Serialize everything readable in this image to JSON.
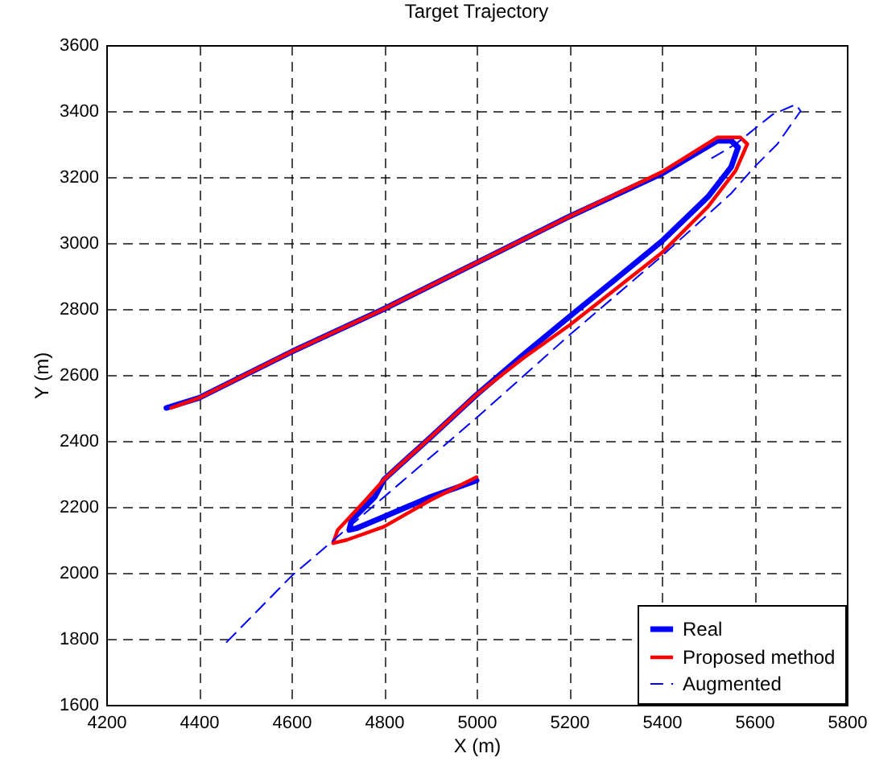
{
  "chart_data": {
    "type": "line",
    "title": "Target Trajectory",
    "xlabel": "X (m)",
    "ylabel": "Y (m)",
    "xlim": [
      4200,
      5800
    ],
    "xticks": [
      4200,
      4400,
      4600,
      4800,
      5000,
      5200,
      5400,
      5600,
      5800
    ],
    "ylim": [
      1600,
      3600
    ],
    "yticks": [
      1600,
      1800,
      2000,
      2200,
      2400,
      2600,
      2800,
      3000,
      3200,
      3400,
      3600
    ],
    "grid": true,
    "legend": "bottom right",
    "series": [
      {
        "name": "Real",
        "color": "#0000ff",
        "line_style": "solid",
        "x": [
          5000,
          4900,
          4800,
          4740,
          4725,
          4730,
          4780,
          4800,
          4900,
          5000,
          5100,
          5200,
          5300,
          5400,
          5500,
          5550,
          5565,
          5550,
          5520,
          5400,
          5200,
          5000,
          4800,
          4600,
          4400,
          4330
        ],
        "values": [
          2280,
          2230,
          2170,
          2135,
          2130,
          2160,
          2230,
          2283,
          2410,
          2540,
          2660,
          2776,
          2890,
          3005,
          3140,
          3230,
          3290,
          3310,
          3310,
          3210,
          3080,
          2940,
          2800,
          2670,
          2530,
          2500
        ]
      },
      {
        "name": "Proposed method",
        "color": "#ff0000",
        "line_style": "solid",
        "x": [
          5000,
          4900,
          4800,
          4720,
          4690,
          4700,
          4760,
          4800,
          4900,
          5000,
          5100,
          5200,
          5300,
          5400,
          5500,
          5560,
          5585,
          5570,
          5520,
          5400,
          5200,
          5000,
          4800,
          4600,
          4400,
          4340
        ],
        "values": [
          2290,
          2220,
          2140,
          2100,
          2090,
          2130,
          2220,
          2283,
          2410,
          2540,
          2650,
          2750,
          2860,
          2970,
          3110,
          3220,
          3300,
          3320,
          3320,
          3215,
          3080,
          2940,
          2800,
          2670,
          2530,
          2500
        ]
      },
      {
        "name": "Augmented",
        "color": "#0000ff",
        "line_style": "dashed",
        "x": [
          4460,
          4600,
          4800,
          5000,
          5200,
          5400,
          5550,
          5600,
          5650,
          5700,
          5690,
          5640,
          5560,
          5500
        ],
        "values": [
          1790,
          1990,
          2230,
          2470,
          2720,
          2960,
          3150,
          3230,
          3300,
          3400,
          3420,
          3390,
          3300,
          3250
        ]
      }
    ]
  }
}
